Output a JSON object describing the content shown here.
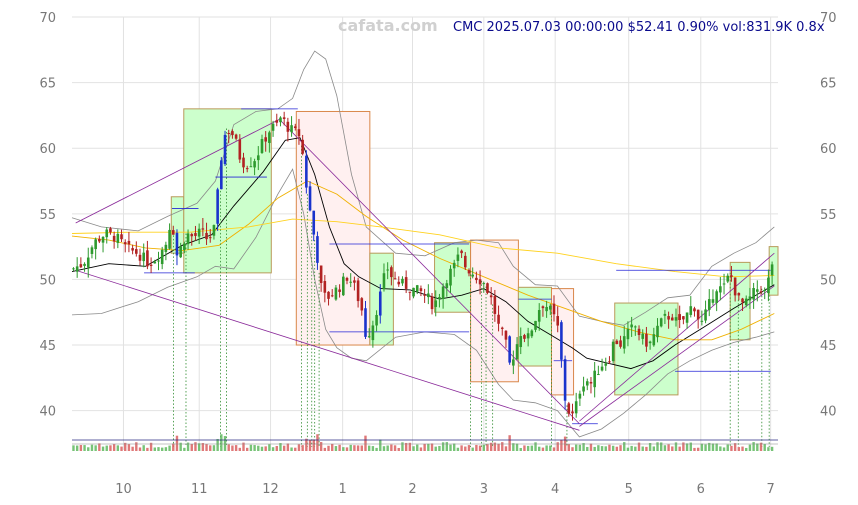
{
  "watermark": "cafata.com",
  "header": "CMC 2025.07.03 00:00:00 $52.41 0.90% vol:831.9K 0.8x",
  "chart_data": {
    "type": "candlestick",
    "symbol": "CMC",
    "ylim": [
      37,
      70
    ],
    "y_ticks": [
      40,
      45,
      50,
      55,
      60,
      65,
      70
    ],
    "x_ticks": [
      {
        "label": "10",
        "t": 0.7
      },
      {
        "label": "11",
        "t": 1.73
      },
      {
        "label": "12",
        "t": 2.7
      },
      {
        "label": "1",
        "t": 3.68
      },
      {
        "label": "2",
        "t": 4.63
      },
      {
        "label": "3",
        "t": 5.6
      },
      {
        "label": "4",
        "t": 6.57
      },
      {
        "label": "5",
        "t": 7.57
      },
      {
        "label": "6",
        "t": 8.55
      },
      {
        "label": "7",
        "t": 9.5
      }
    ],
    "x_range": [
      0,
      9.6
    ],
    "grid": true,
    "close_anchors": [
      [
        0.0,
        50.8
      ],
      [
        0.15,
        51.2
      ],
      [
        0.3,
        52.8
      ],
      [
        0.45,
        53.5
      ],
      [
        0.6,
        53.2
      ],
      [
        0.75,
        52.3
      ],
      [
        0.9,
        52.0
      ],
      [
        1.05,
        51.2
      ],
      [
        1.2,
        52.0
      ],
      [
        1.3,
        53.0
      ],
      [
        1.35,
        55.0
      ],
      [
        1.42,
        51.8
      ],
      [
        1.5,
        52.6
      ],
      [
        1.55,
        53.5
      ],
      [
        1.65,
        53.2
      ],
      [
        1.75,
        53.6
      ],
      [
        1.85,
        53.0
      ],
      [
        1.95,
        54.0
      ],
      [
        2.0,
        58.0
      ],
      [
        2.05,
        60.2
      ],
      [
        2.1,
        61.5
      ],
      [
        2.2,
        61.0
      ],
      [
        2.3,
        59.0
      ],
      [
        2.4,
        58.8
      ],
      [
        2.5,
        59.3
      ],
      [
        2.6,
        60.5
      ],
      [
        2.7,
        61.5
      ],
      [
        2.8,
        61.8
      ],
      [
        2.85,
        62.5
      ],
      [
        2.9,
        61.8
      ],
      [
        3.0,
        61.3
      ],
      [
        3.1,
        61.0
      ],
      [
        3.15,
        59.0
      ],
      [
        3.2,
        56.5
      ],
      [
        3.27,
        54.0
      ],
      [
        3.33,
        52.0
      ],
      [
        3.38,
        49.5
      ],
      [
        3.45,
        48.5
      ],
      [
        3.55,
        49.0
      ],
      [
        3.65,
        49.5
      ],
      [
        3.75,
        50.3
      ],
      [
        3.85,
        49.3
      ],
      [
        3.95,
        47.5
      ],
      [
        4.0,
        45.5
      ],
      [
        4.1,
        46.8
      ],
      [
        4.2,
        49.0
      ],
      [
        4.28,
        51.0
      ],
      [
        4.35,
        50.2
      ],
      [
        4.45,
        49.7
      ],
      [
        4.55,
        49.5
      ],
      [
        4.65,
        49.2
      ],
      [
        4.75,
        49.0
      ],
      [
        4.85,
        48.5
      ],
      [
        4.92,
        48.0
      ],
      [
        5.0,
        49.0
      ],
      [
        5.1,
        50.2
      ],
      [
        5.2,
        51.0
      ],
      [
        5.28,
        52.0
      ],
      [
        5.35,
        51.0
      ],
      [
        5.45,
        50.5
      ],
      [
        5.55,
        50.0
      ],
      [
        5.62,
        49.6
      ],
      [
        5.7,
        48.5
      ],
      [
        5.75,
        47.5
      ],
      [
        5.82,
        46.0
      ],
      [
        5.88,
        45.6
      ],
      [
        5.95,
        43.5
      ],
      [
        6.02,
        44.5
      ],
      [
        6.1,
        46.0
      ],
      [
        6.2,
        45.5
      ],
      [
        6.3,
        47.0
      ],
      [
        6.38,
        48.2
      ],
      [
        6.45,
        48.0
      ],
      [
        6.52,
        47.5
      ],
      [
        6.6,
        46.5
      ],
      [
        6.65,
        44.0
      ],
      [
        6.7,
        41.0
      ],
      [
        6.75,
        40.0
      ],
      [
        6.82,
        39.5
      ],
      [
        6.9,
        41.5
      ],
      [
        6.98,
        42.5
      ],
      [
        7.05,
        42.0
      ],
      [
        7.12,
        42.8
      ],
      [
        7.2,
        43.5
      ],
      [
        7.3,
        44.0
      ],
      [
        7.38,
        45.5
      ],
      [
        7.45,
        45.0
      ],
      [
        7.55,
        45.8
      ],
      [
        7.65,
        46.5
      ],
      [
        7.75,
        45.5
      ],
      [
        7.85,
        45.0
      ],
      [
        7.95,
        46.2
      ],
      [
        8.05,
        47.0
      ],
      [
        8.15,
        47.3
      ],
      [
        8.25,
        46.5
      ],
      [
        8.35,
        47.2
      ],
      [
        8.45,
        48.2
      ],
      [
        8.55,
        46.5
      ],
      [
        8.65,
        47.8
      ],
      [
        8.75,
        49.5
      ],
      [
        8.85,
        49.2
      ],
      [
        8.95,
        50.5
      ],
      [
        9.05,
        48.5
      ],
      [
        9.15,
        48.0
      ],
      [
        9.25,
        48.8
      ],
      [
        9.35,
        49.5
      ],
      [
        9.42,
        49.0
      ],
      [
        9.5,
        50.5
      ],
      [
        9.55,
        52.4
      ]
    ],
    "moving_averages": [
      {
        "color": "#000000",
        "points": [
          [
            0,
            50.6
          ],
          [
            0.5,
            51.2
          ],
          [
            1.0,
            51.0
          ],
          [
            1.5,
            52.6
          ],
          [
            1.9,
            53.4
          ],
          [
            2.2,
            55.6
          ],
          [
            2.6,
            58.2
          ],
          [
            2.9,
            60.6
          ],
          [
            3.1,
            60.8
          ],
          [
            3.3,
            58.0
          ],
          [
            3.5,
            54.0
          ],
          [
            3.7,
            51.2
          ],
          [
            3.9,
            50.2
          ],
          [
            4.2,
            49.3
          ],
          [
            4.6,
            49.2
          ],
          [
            5.0,
            48.5
          ],
          [
            5.3,
            48.8
          ],
          [
            5.6,
            49.3
          ],
          [
            5.9,
            48.3
          ],
          [
            6.2,
            46.8
          ],
          [
            6.5,
            45.8
          ],
          [
            6.8,
            44.8
          ],
          [
            7.0,
            44.0
          ],
          [
            7.3,
            43.6
          ],
          [
            7.6,
            43.2
          ],
          [
            7.9,
            43.8
          ],
          [
            8.2,
            45.0
          ],
          [
            8.6,
            46.4
          ],
          [
            9.0,
            47.8
          ],
          [
            9.3,
            48.8
          ],
          [
            9.55,
            49.6
          ]
        ]
      },
      {
        "color": "#f0b100",
        "points": [
          [
            0,
            53.3
          ],
          [
            0.5,
            53.0
          ],
          [
            1.0,
            52.4
          ],
          [
            1.5,
            52.2
          ],
          [
            2.0,
            52.6
          ],
          [
            2.4,
            54.2
          ],
          [
            2.8,
            56.2
          ],
          [
            3.2,
            57.5
          ],
          [
            3.6,
            56.5
          ],
          [
            4.0,
            54.8
          ],
          [
            4.5,
            53.0
          ],
          [
            5.0,
            51.6
          ],
          [
            5.6,
            50.2
          ],
          [
            6.2,
            48.8
          ],
          [
            6.7,
            47.8
          ],
          [
            7.2,
            46.8
          ],
          [
            7.7,
            46.0
          ],
          [
            8.2,
            45.4
          ],
          [
            8.7,
            45.4
          ],
          [
            9.1,
            46.2
          ],
          [
            9.55,
            47.4
          ]
        ]
      },
      {
        "color": "#ffd21f",
        "points": [
          [
            0,
            53.5
          ],
          [
            0.8,
            53.6
          ],
          [
            1.6,
            53.6
          ],
          [
            2.4,
            54.0
          ],
          [
            3.0,
            54.6
          ],
          [
            3.6,
            54.4
          ],
          [
            4.2,
            54.0
          ],
          [
            5.0,
            53.4
          ],
          [
            5.8,
            52.4
          ],
          [
            6.6,
            52.0
          ],
          [
            7.4,
            51.2
          ],
          [
            8.2,
            50.6
          ],
          [
            8.9,
            50.2
          ],
          [
            9.55,
            50.3
          ]
        ]
      }
    ],
    "bollinger_upper": [
      [
        0,
        54.7
      ],
      [
        0.4,
        54.0
      ],
      [
        0.9,
        53.7
      ],
      [
        1.3,
        54.8
      ],
      [
        1.7,
        55.8
      ],
      [
        1.95,
        57.5
      ],
      [
        2.2,
        61.8
      ],
      [
        2.5,
        62.8
      ],
      [
        2.8,
        63.0
      ],
      [
        3.0,
        63.8
      ],
      [
        3.15,
        66.0
      ],
      [
        3.3,
        67.4
      ],
      [
        3.45,
        66.8
      ],
      [
        3.6,
        64.0
      ],
      [
        3.8,
        58.0
      ],
      [
        4.0,
        54.0
      ],
      [
        4.4,
        52.0
      ],
      [
        4.8,
        51.8
      ],
      [
        5.2,
        52.8
      ],
      [
        5.5,
        53.0
      ],
      [
        5.8,
        52.8
      ],
      [
        6.0,
        51.0
      ],
      [
        6.3,
        49.6
      ],
      [
        6.6,
        49.5
      ],
      [
        6.9,
        47.2
      ],
      [
        7.2,
        46.8
      ],
      [
        7.5,
        46.5
      ],
      [
        7.8,
        47.5
      ],
      [
        8.1,
        48.6
      ],
      [
        8.4,
        48.8
      ],
      [
        8.7,
        51.0
      ],
      [
        9.0,
        52.0
      ],
      [
        9.3,
        52.8
      ],
      [
        9.55,
        54.0
      ]
    ],
    "bollinger_lower": [
      [
        0,
        47.3
      ],
      [
        0.4,
        47.4
      ],
      [
        0.9,
        48.3
      ],
      [
        1.3,
        49.4
      ],
      [
        1.7,
        50.2
      ],
      [
        1.95,
        51.0
      ],
      [
        2.2,
        50.8
      ],
      [
        2.5,
        53.2
      ],
      [
        2.8,
        56.5
      ],
      [
        3.0,
        58.4
      ],
      [
        3.15,
        55.0
      ],
      [
        3.3,
        50.0
      ],
      [
        3.45,
        46.2
      ],
      [
        3.6,
        44.8
      ],
      [
        3.8,
        44.0
      ],
      [
        4.0,
        43.8
      ],
      [
        4.4,
        45.6
      ],
      [
        4.8,
        46.0
      ],
      [
        5.2,
        45.8
      ],
      [
        5.5,
        44.6
      ],
      [
        5.8,
        42.0
      ],
      [
        6.0,
        40.8
      ],
      [
        6.3,
        40.6
      ],
      [
        6.6,
        40.0
      ],
      [
        6.9,
        38.0
      ],
      [
        7.2,
        38.6
      ],
      [
        7.5,
        39.8
      ],
      [
        7.8,
        41.2
      ],
      [
        8.1,
        42.8
      ],
      [
        8.4,
        43.8
      ],
      [
        8.7,
        44.6
      ],
      [
        9.0,
        45.2
      ],
      [
        9.3,
        45.6
      ],
      [
        9.55,
        46.0
      ]
    ],
    "boxes": [
      {
        "t0": 1.35,
        "t1": 1.52,
        "lo": 52.0,
        "hi": 56.3,
        "dir": "up"
      },
      {
        "t0": 1.52,
        "t1": 2.71,
        "lo": 50.5,
        "hi": 63.0,
        "dir": "up"
      },
      {
        "t0": 3.05,
        "t1": 4.05,
        "lo": 45.0,
        "hi": 62.8,
        "dir": "down"
      },
      {
        "t0": 4.05,
        "t1": 4.37,
        "lo": 45.0,
        "hi": 52.0,
        "dir": "up"
      },
      {
        "t0": 4.93,
        "t1": 5.42,
        "lo": 47.5,
        "hi": 52.8,
        "dir": "up"
      },
      {
        "t0": 5.42,
        "t1": 6.07,
        "lo": 42.2,
        "hi": 53.0,
        "dir": "down"
      },
      {
        "t0": 6.07,
        "t1": 6.52,
        "lo": 43.4,
        "hi": 49.4,
        "dir": "up"
      },
      {
        "t0": 6.52,
        "t1": 6.82,
        "lo": 41.2,
        "hi": 49.3,
        "dir": "down"
      },
      {
        "t0": 7.38,
        "t1": 8.24,
        "lo": 41.2,
        "hi": 48.2,
        "dir": "up"
      },
      {
        "t0": 8.95,
        "t1": 9.22,
        "lo": 45.4,
        "hi": 51.3,
        "dir": "up"
      },
      {
        "t0": 9.48,
        "t1": 9.6,
        "lo": 48.8,
        "hi": 52.5,
        "dir": "up"
      }
    ],
    "support_lines": [
      [
        1.36,
        1.72,
        55.4
      ],
      [
        0.98,
        1.67,
        50.5
      ],
      [
        1.95,
        2.65,
        57.8
      ],
      [
        2.3,
        3.07,
        63.0
      ],
      [
        3.5,
        5.4,
        52.7
      ],
      [
        3.5,
        5.4,
        46.0
      ],
      [
        6.07,
        6.52,
        48.5
      ],
      [
        6.55,
        6.8,
        43.8
      ],
      [
        6.8,
        7.15,
        39.0
      ],
      [
        7.4,
        9.5,
        50.7
      ],
      [
        8.2,
        9.5,
        43.0
      ]
    ],
    "channel_lines": [
      [
        0.05,
        54.3,
        2.82,
        62.2
      ],
      [
        2.82,
        62.2,
        6.9,
        39.0
      ],
      [
        0.05,
        50.7,
        6.9,
        38.5
      ],
      [
        6.9,
        39.2,
        9.55,
        52.0
      ],
      [
        6.9,
        38.8,
        9.55,
        49.5
      ]
    ],
    "signal_markers": [
      1.38,
      1.55,
      2.02,
      2.1,
      3.12,
      3.2,
      3.26,
      3.3,
      3.36,
      5.42,
      5.57,
      5.63,
      5.72,
      6.52,
      6.73,
      8.95,
      9.06,
      9.38,
      9.48
    ]
  }
}
